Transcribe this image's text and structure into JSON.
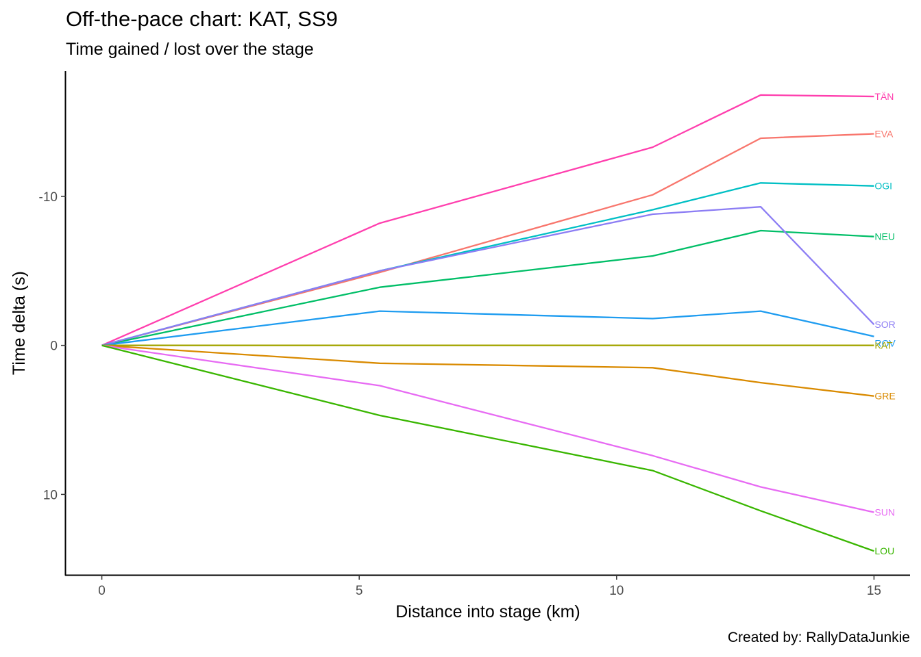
{
  "chart_data": {
    "type": "line",
    "title": "Off-the-pace chart: KAT, SS9",
    "subtitle": "Time gained / lost over the stage",
    "xlabel": "Distance into stage (km)",
    "ylabel": "Time delta (s)",
    "caption": "Created by: RallyDataJunkie",
    "x": [
      0,
      5.4,
      10.7,
      12.8,
      15
    ],
    "xlim": [
      -0.7,
      15.7
    ],
    "ylim": [
      -18.4,
      15.4
    ],
    "y_reversed": true,
    "x_ticks": [
      0,
      5,
      10,
      15
    ],
    "y_ticks": [
      -10,
      0,
      10
    ],
    "y_tick_labels": [
      "-10",
      "0",
      "10"
    ],
    "grid": false,
    "legend": "none",
    "series": [
      {
        "name": "TÄN",
        "color": "#FF3FAE",
        "values": [
          0,
          -8.2,
          -13.3,
          -16.8,
          -16.7
        ]
      },
      {
        "name": "EVA",
        "color": "#F8766D",
        "values": [
          0,
          -4.9,
          -10.1,
          -13.9,
          -14.2
        ]
      },
      {
        "name": "OGI",
        "color": "#00BFC4",
        "values": [
          0,
          -5.0,
          -9.1,
          -10.9,
          -10.7
        ]
      },
      {
        "name": "NEU",
        "color": "#00BE67",
        "values": [
          0,
          -3.9,
          -6.0,
          -7.7,
          -7.3
        ]
      },
      {
        "name": "SOR",
        "color": "#8C7DF4",
        "values": [
          0,
          -5.0,
          -8.8,
          -9.3,
          -1.4
        ]
      },
      {
        "name": "ROV",
        "color": "#1E9CF0",
        "values": [
          0,
          -2.3,
          -1.8,
          -2.3,
          -0.6
        ]
      },
      {
        "name": "KAT",
        "color": "#A3A500",
        "values": [
          0,
          0,
          0,
          0,
          0
        ]
      },
      {
        "name": "GRE",
        "color": "#D98A00",
        "values": [
          0,
          1.2,
          1.5,
          2.5,
          3.4
        ]
      },
      {
        "name": "SUN",
        "color": "#E76BF3",
        "values": [
          0,
          2.7,
          7.4,
          9.5,
          11.2
        ]
      },
      {
        "name": "LOU",
        "color": "#39B600",
        "values": [
          0,
          4.7,
          8.4,
          11.1,
          13.8
        ]
      }
    ]
  }
}
